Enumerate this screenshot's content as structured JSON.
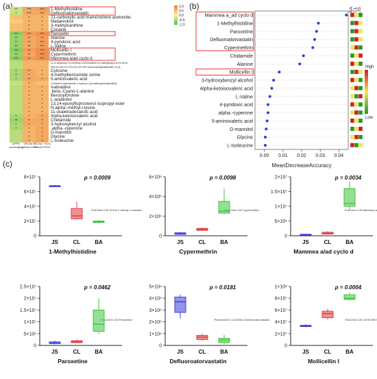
{
  "panels": {
    "a": "(a)",
    "b": "(b)",
    "c": "(c)"
  },
  "colors": {
    "JS": "#3b3bdc",
    "CL": "#e0393e",
    "BA": "#3ec43e"
  },
  "heatmap": {
    "columns": [
      "DPPH scavenging",
      "GELNs + cellular ROS",
      "GELNs + H2O2 induced ROS"
    ],
    "col_label_lines": [
      [
        "DPPH",
        "scavenging"
      ],
      [
        "GELNs +",
        "cellular ROS"
      ],
      [
        "GELNs + H₂O₂",
        "induced ROS"
      ]
    ],
    "legend_ticks": [
      "1.0",
      "0.5",
      "0.0",
      "-0.5",
      "-1.0"
    ],
    "rows": [
      {
        "label": "1-Methylhistidine",
        "values": [
          -0.3,
          0.6,
          0.7
        ],
        "stars": [
          "**",
          "***",
          "***"
        ],
        "boxed": true
      },
      {
        "label": "Defluoroatorvastatin",
        "values": [
          -0.3,
          0.6,
          0.6
        ],
        "stars": [
          "*",
          "***",
          "***"
        ],
        "boxed": true
      },
      {
        "label": "21-carboxylic acid triamcinolone acetonide.",
        "values": [
          0.4,
          0.5,
          0.5
        ],
        "stars": [
          "",
          "*",
          "*"
        ],
        "boxed": false
      },
      {
        "label": "Mataireslnol",
        "values": [
          0.3,
          0.5,
          0.5
        ],
        "stars": [
          "",
          "*",
          "*"
        ],
        "boxed": false
      },
      {
        "label": "3-methylxanthine",
        "values": [
          0.4,
          0.5,
          0.5
        ],
        "stars": [
          "",
          "*",
          "*"
        ],
        "boxed": false
      },
      {
        "label": "Cocaine",
        "values": [
          0.4,
          0.5,
          0.5
        ],
        "stars": [
          "",
          "*",
          "*"
        ],
        "boxed": false
      },
      {
        "label": "Paroxetin",
        "values": [
          -0.7,
          0.7,
          0.8
        ],
        "stars": [
          "***",
          "***",
          "***"
        ],
        "boxed": true
      },
      {
        "label": "Alanine",
        "values": [
          -0.6,
          0.6,
          0.7
        ],
        "stars": [
          "**",
          "**",
          "**"
        ],
        "boxed": false
      },
      {
        "label": "4-pyridoxic acid",
        "values": [
          -0.6,
          0.6,
          0.7
        ],
        "stars": [
          "**",
          "**",
          "***"
        ],
        "boxed": false
      },
      {
        "label": "L-Valine",
        "values": [
          -0.6,
          0.6,
          0.7
        ],
        "stars": [
          "**",
          "**",
          "***"
        ],
        "boxed": false
      },
      {
        "label": "Mollicellin I",
        "values": [
          -0.7,
          0.7,
          0.8
        ],
        "stars": [
          "***",
          "**",
          "***"
        ],
        "boxed": true
      },
      {
        "label": "Cypermethrin",
        "values": [
          -0.6,
          0.6,
          0.8
        ],
        "stars": [
          "**",
          "**",
          "***"
        ],
        "boxed": true
      },
      {
        "label": "Mammea a/ad cyclo d",
        "values": [
          -0.7,
          0.7,
          0.8
        ],
        "stars": [
          "***",
          "**",
          "***"
        ],
        "boxed": true
      },
      {
        "label": "11,12-dihydroxy-7-(2-methoxy-4,5,8-trimethyl-3-(2-methylpropyl)-1h,2h,3h,4h,-",
        "values": [
          -0.4,
          0.5,
          0.5
        ],
        "stars": [
          "",
          "",
          ""
        ],
        "boxed": false
      },
      {
        "label": "5aH,6H,10H,11H,12H,13H,14H,15H-cycloundeca[a]naphthalen-10-yl)",
        "values": [
          -0.4,
          0.5,
          0.5
        ],
        "stars": [
          "",
          "",
          ""
        ],
        "boxed": false
      },
      {
        "label": "Cytosine",
        "values": [
          -0.5,
          0.6,
          0.5
        ],
        "stars": [
          "*",
          "**",
          "*"
        ],
        "boxed": false
      },
      {
        "label": "4-methylbenzamide oxime",
        "values": [
          -0.5,
          0.6,
          0.5
        ],
        "stars": [
          "*",
          "*",
          "*"
        ],
        "boxed": false
      },
      {
        "label": "5-aminovaleric acid",
        "values": [
          -0.5,
          0.6,
          0.6
        ],
        "stars": [
          "*",
          "**",
          "*"
        ],
        "boxed": false
      },
      {
        "label": "1h-indole-6-carboxamide, n-hydroxy-1-[(4-methoxyphenyl)methyl]-",
        "values": [
          -0.3,
          0.5,
          0.4
        ],
        "stars": [
          "",
          "*",
          ""
        ],
        "boxed": false
      },
      {
        "label": "Ivabradine",
        "values": [
          -0.4,
          0.5,
          0.5
        ],
        "stars": [
          "",
          "*",
          "*"
        ],
        "boxed": false
      },
      {
        "label": ".beta.-Cyano-L-alanine",
        "values": [
          -0.4,
          0.5,
          0.5
        ],
        "stars": [
          "",
          "*",
          "*"
        ],
        "boxed": false
      },
      {
        "label": "Benzoylcholine",
        "values": [
          -0.4,
          0.5,
          0.5
        ],
        "stars": [
          "",
          "*",
          "*"
        ],
        "boxed": false
      },
      {
        "label": "L-arabinitol",
        "values": [
          -0.4,
          0.5,
          0.5
        ],
        "stars": [
          "",
          "*",
          "*"
        ],
        "boxed": false
      },
      {
        "label": "13,14-epoxyfluprostenol isopropyl ester",
        "values": [
          -0.4,
          0.5,
          0.5
        ],
        "stars": [
          "",
          "*",
          "*"
        ],
        "boxed": false
      },
      {
        "label": "N.alpha.-methyl-l-lysine",
        "values": [
          -0.4,
          0.5,
          0.5
        ],
        "stars": [
          "",
          "*",
          "*"
        ],
        "boxed": false
      },
      {
        "label": "11-oxaletradecanoic acid",
        "values": [
          -0.4,
          0.5,
          0.5
        ],
        "stars": [
          "",
          "*",
          "*"
        ],
        "boxed": false
      },
      {
        "label": "Alpha-ketoisovaleric acid",
        "values": [
          -0.5,
          0.5,
          0.6
        ],
        "stars": [
          "*",
          "*",
          "*"
        ],
        "boxed": false
      },
      {
        "label": "Chidamide",
        "values": [
          -0.6,
          0.6,
          0.6
        ],
        "stars": [
          "**",
          "*",
          "*"
        ],
        "boxed": false
      },
      {
        "label": "3-hydroxybenzyl alcohol",
        "values": [
          -0.5,
          0.6,
          0.6
        ],
        "stars": [
          "*",
          "*",
          "*"
        ],
        "boxed": false
      },
      {
        "label": ".alpha.-cyperone",
        "values": [
          -0.5,
          0.5,
          0.6
        ],
        "stars": [
          "*",
          "*",
          "*"
        ],
        "boxed": false
      },
      {
        "label": "D-mannitol",
        "values": [
          -0.4,
          0.5,
          0.6
        ],
        "stars": [
          "",
          "*",
          "*"
        ],
        "boxed": false
      },
      {
        "label": "Glycine",
        "values": [
          -0.4,
          0.5,
          0.6
        ],
        "stars": [
          "",
          "*",
          "*"
        ],
        "boxed": false
      },
      {
        "label": "L-Isoleucine",
        "values": [
          -0.4,
          0.5,
          0.6
        ],
        "stars": [
          "",
          "*",
          "*"
        ],
        "boxed": false
      }
    ]
  },
  "chart_data": [
    {
      "type": "scatter",
      "panel": "b",
      "xlabel": "MeanDecreaseAccuracy",
      "xlim": [
        -0.005,
        0.045
      ],
      "xticks": [
        "0.00",
        "0.01",
        "0.02",
        "0.03",
        "0.04"
      ],
      "xtick_values": [
        0.0,
        0.01,
        0.02,
        0.03,
        0.04
      ],
      "categories": [
        "Mammea a_ad cyclo d",
        "1-Methylhistidine",
        "Paroxetine",
        "Defluoroatorvastatin",
        "Cypermethrin",
        "Chidamide",
        "Alanine",
        "Mollicellin I",
        "3-hydroxybenzyl alcohol",
        "Alpha-ketoisovaleric acid",
        "L-Valine",
        "4-pyridoxic acid",
        ".alpha.-cyperone",
        "5-aminovaleric acid",
        "D-mannitol",
        "Glycine",
        "L-Isoleucine"
      ],
      "boxed_groups": [
        [
          0,
          4
        ],
        [
          7,
          7
        ]
      ],
      "values": [
        0.044,
        0.029,
        0.028,
        0.027,
        0.026,
        0.021,
        0.019,
        0.008,
        0.005,
        0.004,
        0.003,
        0.002,
        0.002,
        0.0015,
        0.001,
        0.0005,
        0.0005
      ],
      "group_labels": [
        "BA",
        "CL",
        "JS"
      ],
      "legend_labels": [
        "High",
        "Low"
      ],
      "tile_levels": [
        [
          1.0,
          0.5,
          0.0
        ],
        [
          0.0,
          1.0,
          0.5
        ],
        [
          0.0,
          1.0,
          0.5
        ],
        [
          0.0,
          1.0,
          0.5
        ],
        [
          0.5,
          1.0,
          0.0
        ],
        [
          0.0,
          0.5,
          1.0
        ],
        [
          1.0,
          0.5,
          0.0
        ],
        [
          0.0,
          1.0,
          0.5
        ],
        [
          1.0,
          0.5,
          0.0
        ],
        [
          0.5,
          1.0,
          0.0
        ],
        [
          0.5,
          0.0,
          1.0
        ],
        [
          1.0,
          0.5,
          0.0
        ],
        [
          0.5,
          1.0,
          0.0
        ],
        [
          1.0,
          0.5,
          0.0
        ],
        [
          0.0,
          0.5,
          1.0
        ],
        [
          0.5,
          1.0,
          0.0
        ],
        [
          1.0,
          0.0,
          0.5
        ]
      ]
    },
    {
      "type": "box",
      "panel": "c",
      "categories": [
        "JS",
        "CL",
        "BA"
      ],
      "plots": [
        {
          "title": "1-Methylhistidine",
          "pvalue": "p = 0.0009",
          "ymax": 80000000,
          "yticks": [
            0,
            20000000,
            40000000,
            60000000,
            80000000
          ],
          "ytick_labels": [
            "0",
            "2×10⁷",
            "4×10⁷",
            "6×10⁷",
            "8×10⁷"
          ],
          "boxes": [
            {
              "min": 66000000,
              "q1": 67000000,
              "med": 67500000,
              "q3": 68000000,
              "max": 69000000
            },
            {
              "min": 22000000,
              "q1": 23000000,
              "med": 27000000,
              "q3": 37000000,
              "max": 46000000
            },
            {
              "min": 17000000,
              "q1": 18000000,
              "med": 19000000,
              "q3": 20000000,
              "max": 21000000
            }
          ],
          "caption": "PubChem CID 92105  1-Methyl-L-histidine"
        },
        {
          "title": "Cypermethrin",
          "pvalue": "p = 0.0098",
          "ymax": 6000000,
          "yticks": [
            0,
            2000000,
            4000000,
            6000000
          ],
          "ytick_labels": [
            "0",
            "2×10⁶",
            "4×10⁶",
            "6×10⁶"
          ],
          "boxes": [
            {
              "min": 100000,
              "q1": 150000,
              "med": 200000,
              "q3": 300000,
              "max": 400000
            },
            {
              "min": 500000,
              "q1": 550000,
              "med": 650000,
              "q3": 750000,
              "max": 850000
            },
            {
              "min": 2200000,
              "q1": 2300000,
              "med": 2500000,
              "q3": 3500000,
              "max": 4800000
            }
          ],
          "caption": "PubChem CID Cypermethrin"
        },
        {
          "title": "Mammea a/ad cyclo d",
          "pvalue": "p = 0.0034",
          "ymax": 20000000,
          "yticks": [
            0,
            5000000,
            10000000,
            15000000,
            20000000
          ],
          "ytick_labels": [
            "0",
            "5×10⁶",
            "1×10⁷",
            "1.5×10⁷",
            "2×10⁷"
          ],
          "boxes": [
            {
              "min": 100000,
              "q1": 200000,
              "med": 300000,
              "q3": 500000,
              "max": 700000
            },
            {
              "min": 400000,
              "q1": 600000,
              "med": 800000,
              "q3": 1200000,
              "max": 1500000
            },
            {
              "min": 9000000,
              "q1": 10000000,
              "med": 11000000,
              "q3": 16000000,
              "max": 18500000
            }
          ],
          "caption": "PubChem CID Mammea a/ad cyclo d"
        },
        {
          "title": "Paroxetine",
          "pvalue": "p = 0.0462",
          "ymax": 25000000,
          "yticks": [
            0,
            5000000,
            10000000,
            15000000,
            20000000,
            25000000
          ],
          "ytick_labels": [
            "0",
            "5×10⁶",
            "1×10⁷",
            "1.5×10⁷",
            "2×10⁷",
            "2.5×10⁷"
          ],
          "boxes": [
            {
              "min": 500000,
              "q1": 800000,
              "med": 1000000,
              "q3": 1500000,
              "max": 2000000
            },
            {
              "min": 1000000,
              "q1": 1200000,
              "med": 1500000,
              "q3": 2000000,
              "max": 2500000
            },
            {
              "min": 5000000,
              "q1": 6000000,
              "med": 9000000,
              "q3": 15000000,
              "max": 20000000
            }
          ],
          "caption": "PubChem CID Paroxetine"
        },
        {
          "title": "Defluoroatorvastatin",
          "pvalue": "p = 0.0181",
          "ymax": 5000000,
          "yticks": [
            0,
            1000000,
            2000000,
            3000000,
            4000000,
            5000000
          ],
          "ytick_labels": [
            "0",
            "1×10⁶",
            "2×10⁶",
            "3×10⁶",
            "4×10⁶",
            "5×10⁶"
          ],
          "boxes": [
            {
              "min": 2300000,
              "q1": 2800000,
              "med": 3700000,
              "q3": 4100000,
              "max": 4300000
            },
            {
              "min": 400000,
              "q1": 500000,
              "med": 700000,
              "q3": 850000,
              "max": 1000000
            },
            {
              "min": 100000,
              "q1": 250000,
              "med": 450000,
              "q3": 600000,
              "max": 900000
            }
          ],
          "caption": "PubchemCID 11191954  Desfluoroatorvastatin"
        },
        {
          "title": "Mollicellin I",
          "pvalue": "p = 0.0004",
          "ymax": 100000000,
          "yticks": [
            0,
            20000000,
            40000000,
            60000000,
            80000000,
            100000000
          ],
          "ytick_labels": [
            "0",
            "2×10⁷",
            "4×10⁷",
            "6×10⁷",
            "8×10⁷",
            "1×10⁸"
          ],
          "boxes": [
            {
              "min": 31000000,
              "q1": 32000000,
              "med": 33000000,
              "q3": 34000000,
              "max": 36000000
            },
            {
              "min": 44000000,
              "q1": 47000000,
              "med": 54000000,
              "q3": 58000000,
              "max": 62000000
            },
            {
              "min": 76000000,
              "q1": 78000000,
              "med": 80000000,
              "q3": 86000000,
              "max": 90000000
            }
          ],
          "caption": "PubChem CID 24787299  Mollicellin I"
        }
      ]
    }
  ]
}
